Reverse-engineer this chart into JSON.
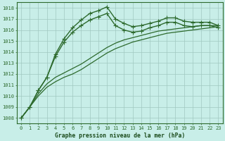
{
  "title": "Graphe pression niveau de la mer (hPa)",
  "x_ticks": [
    0,
    1,
    2,
    3,
    4,
    5,
    6,
    7,
    8,
    9,
    10,
    11,
    12,
    13,
    14,
    15,
    16,
    17,
    18,
    19,
    20,
    21,
    22,
    23
  ],
  "ylim": [
    1007.5,
    1018.5
  ],
  "yticks": [
    1008,
    1009,
    1010,
    1011,
    1012,
    1013,
    1014,
    1015,
    1016,
    1017,
    1018
  ],
  "series": [
    {
      "x": [
        0,
        1,
        2,
        3,
        4,
        5,
        6,
        7,
        8,
        9,
        10,
        11,
        12,
        13,
        14,
        15,
        16,
        17,
        18,
        19,
        20,
        21,
        22,
        23
      ],
      "y": [
        1008.0,
        1009.0,
        1010.5,
        1011.7,
        1013.8,
        1015.2,
        1016.2,
        1016.9,
        1017.5,
        1017.75,
        1018.1,
        1017.0,
        1016.6,
        1016.3,
        1016.4,
        1016.6,
        1016.8,
        1017.1,
        1017.1,
        1016.8,
        1016.7,
        1016.7,
        1016.7,
        1016.4
      ],
      "color": "#2d6a2d",
      "marker": "+",
      "markersize": 4,
      "linewidth": 1.0
    },
    {
      "x": [
        0,
        1,
        2,
        3,
        4,
        5,
        6,
        7,
        8,
        9,
        10,
        11,
        12,
        13,
        14,
        15,
        16,
        17,
        18,
        19,
        20,
        21,
        22,
        23
      ],
      "y": [
        1008.0,
        1009.0,
        1010.5,
        1011.7,
        1013.6,
        1014.9,
        1015.8,
        1016.4,
        1016.9,
        1017.2,
        1017.5,
        1016.4,
        1016.0,
        1015.8,
        1015.9,
        1016.2,
        1016.4,
        1016.7,
        1016.7,
        1016.4,
        1016.3,
        1016.4,
        1016.4,
        1016.2
      ],
      "color": "#2d6a2d",
      "marker": "+",
      "markersize": 4,
      "linewidth": 1.0
    },
    {
      "x": [
        0,
        1,
        2,
        3,
        4,
        5,
        6,
        7,
        8,
        9,
        10,
        11,
        12,
        13,
        14,
        15,
        16,
        17,
        18,
        19,
        20,
        21,
        22,
        23
      ],
      "y": [
        1008.0,
        1009.0,
        1010.0,
        1010.8,
        1011.3,
        1011.7,
        1012.0,
        1012.4,
        1012.9,
        1013.4,
        1013.9,
        1014.3,
        1014.6,
        1014.9,
        1015.1,
        1015.3,
        1015.5,
        1015.7,
        1015.8,
        1015.9,
        1016.0,
        1016.1,
        1016.2,
        1016.3
      ],
      "color": "#2d6a2d",
      "marker": null,
      "markersize": 0,
      "linewidth": 0.9
    },
    {
      "x": [
        0,
        1,
        2,
        3,
        4,
        5,
        6,
        7,
        8,
        9,
        10,
        11,
        12,
        13,
        14,
        15,
        16,
        17,
        18,
        19,
        20,
        21,
        22,
        23
      ],
      "y": [
        1008.0,
        1009.0,
        1010.2,
        1011.1,
        1011.7,
        1012.1,
        1012.5,
        1012.9,
        1013.4,
        1013.9,
        1014.4,
        1014.8,
        1015.1,
        1015.3,
        1015.5,
        1015.7,
        1015.9,
        1016.0,
        1016.1,
        1016.2,
        1016.3,
        1016.4,
        1016.4,
        1016.4
      ],
      "color": "#2d6a2d",
      "marker": null,
      "markersize": 0,
      "linewidth": 0.9
    }
  ],
  "bg_color": "#c8eee8",
  "plot_bg_color": "#c8eee8",
  "grid_color": "#a0c8c0",
  "text_color": "#1a4a1a",
  "axis_color": "#2d6a2d",
  "tick_fontsize": 5.0,
  "xlabel_fontsize": 5.8
}
